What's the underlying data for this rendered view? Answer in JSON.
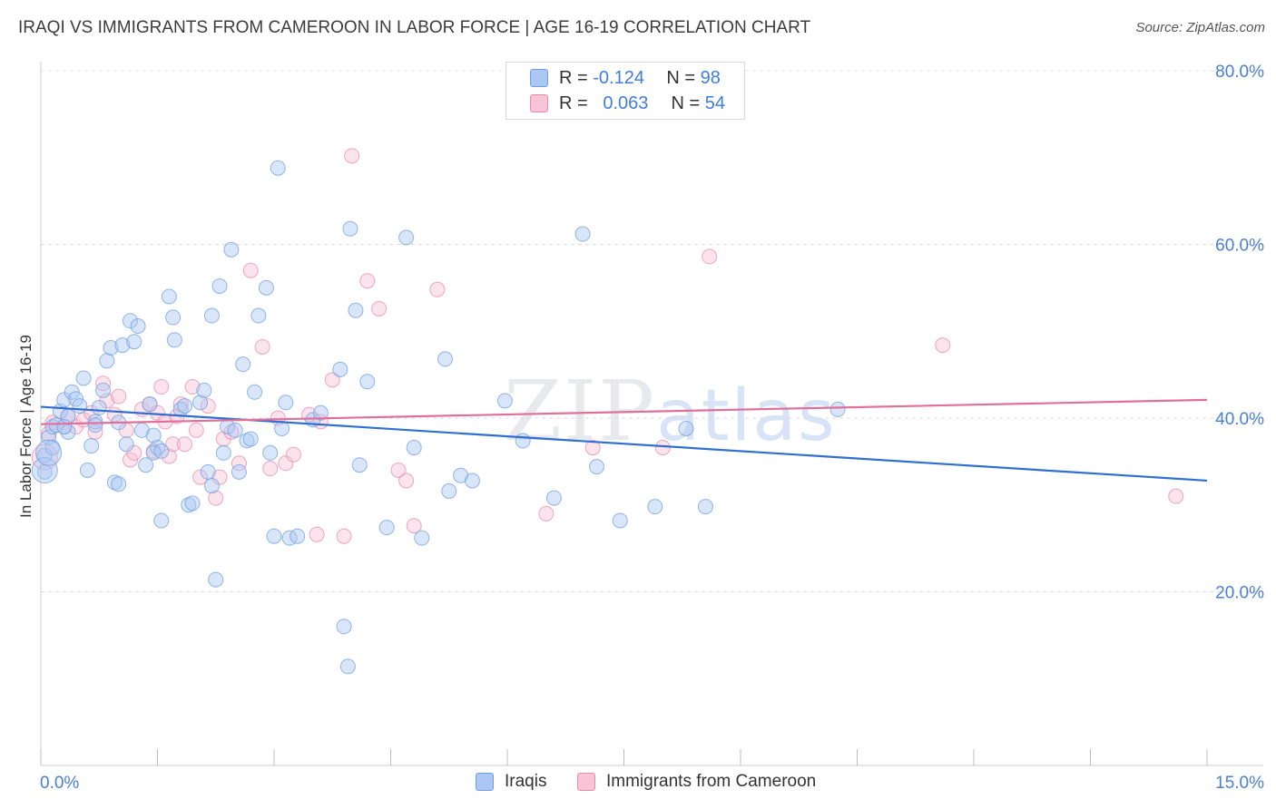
{
  "title": "IRAQI VS IMMIGRANTS FROM CAMEROON IN LABOR FORCE | AGE 16-19 CORRELATION CHART",
  "source": "Source: ZipAtlas.com",
  "watermark": {
    "zip": "ZIP",
    "atlas": "atlas"
  },
  "legend": {
    "rows": [
      {
        "r_label": "R =",
        "r_value": "-0.124",
        "n_label": "N =",
        "n_value": "98"
      },
      {
        "r_label": "R =",
        "r_value": "0.063",
        "n_label": "N =",
        "n_value": "54"
      }
    ]
  },
  "colors": {
    "iraqi_fill": "#aac8f3",
    "iraqi_stroke": "#6f9fe0",
    "iraqi_line": "#2f6fd0",
    "cameroon_fill": "#f8c4d6",
    "cameroon_stroke": "#e98aab",
    "cameroon_line": "#e0709a",
    "tick_text": "#4a7fd4"
  },
  "chart_data": {
    "type": "scatter",
    "title": "IRAQI VS IMMIGRANTS FROM CAMEROON IN LABOR FORCE | AGE 16-19 CORRELATION CHART",
    "xlabel": "",
    "ylabel": "In Labor Force | Age 16-19",
    "xlim": [
      0,
      15
    ],
    "ylim": [
      0,
      80
    ],
    "x_tick_labels": [
      "0.0%",
      "15.0%"
    ],
    "y_ticks": [
      20,
      40,
      60,
      80
    ],
    "y_tick_labels": [
      "20.0%",
      "40.0%",
      "60.0%",
      "80.0%"
    ],
    "grid": true,
    "legend_position": "top-center",
    "series": [
      {
        "name": "Iraqis",
        "r": -0.124,
        "n": 98,
        "trend": {
          "x": [
            0,
            15
          ],
          "y": [
            41.3,
            32.8
          ]
        },
        "points": [
          [
            0.05,
            35.7
          ],
          [
            0.05,
            33.8
          ],
          [
            0.1,
            37.8
          ],
          [
            0.15,
            39.0
          ],
          [
            0.2,
            39.2
          ],
          [
            0.25,
            40.8
          ],
          [
            0.3,
            42.1
          ],
          [
            0.35,
            38.4
          ],
          [
            0.4,
            43.0
          ],
          [
            0.45,
            42.2
          ],
          [
            0.5,
            41.4
          ],
          [
            0.55,
            44.6
          ],
          [
            0.6,
            34.0
          ],
          [
            0.65,
            36.8
          ],
          [
            0.7,
            39.6
          ],
          [
            0.75,
            41.2
          ],
          [
            0.8,
            43.2
          ],
          [
            0.85,
            46.6
          ],
          [
            0.9,
            48.1
          ],
          [
            0.95,
            32.6
          ],
          [
            1.0,
            32.4
          ],
          [
            1.05,
            48.4
          ],
          [
            1.1,
            37.0
          ],
          [
            1.15,
            51.2
          ],
          [
            1.2,
            48.8
          ],
          [
            1.25,
            50.6
          ],
          [
            1.3,
            38.6
          ],
          [
            1.35,
            34.6
          ],
          [
            1.4,
            41.6
          ],
          [
            1.45,
            38.0
          ],
          [
            1.5,
            36.6
          ],
          [
            1.55,
            28.2
          ],
          [
            1.45,
            36.0
          ],
          [
            1.55,
            36.2
          ],
          [
            1.65,
            54.0
          ],
          [
            1.7,
            51.6
          ],
          [
            1.72,
            49.0
          ],
          [
            1.8,
            41.0
          ],
          [
            1.85,
            41.4
          ],
          [
            1.9,
            30.0
          ],
          [
            1.95,
            30.2
          ],
          [
            2.05,
            41.8
          ],
          [
            2.1,
            43.2
          ],
          [
            2.15,
            33.8
          ],
          [
            2.2,
            51.8
          ],
          [
            2.25,
            21.4
          ],
          [
            2.3,
            55.2
          ],
          [
            2.35,
            36.0
          ],
          [
            2.4,
            39.0
          ],
          [
            2.45,
            59.4
          ],
          [
            2.5,
            38.6
          ],
          [
            2.55,
            33.8
          ],
          [
            2.6,
            46.2
          ],
          [
            2.65,
            37.4
          ],
          [
            2.7,
            37.6
          ],
          [
            2.75,
            43.0
          ],
          [
            2.8,
            51.8
          ],
          [
            2.9,
            55.0
          ],
          [
            2.95,
            36.0
          ],
          [
            3.0,
            26.4
          ],
          [
            3.05,
            68.8
          ],
          [
            3.1,
            38.8
          ],
          [
            3.15,
            41.8
          ],
          [
            3.2,
            26.2
          ],
          [
            3.3,
            26.4
          ],
          [
            3.5,
            39.8
          ],
          [
            3.6,
            40.6
          ],
          [
            3.85,
            45.6
          ],
          [
            3.9,
            16.0
          ],
          [
            3.95,
            11.4
          ],
          [
            3.98,
            61.8
          ],
          [
            4.05,
            52.4
          ],
          [
            4.1,
            34.6
          ],
          [
            4.2,
            44.2
          ],
          [
            4.45,
            27.4
          ],
          [
            4.7,
            60.8
          ],
          [
            4.9,
            26.2
          ],
          [
            4.8,
            36.6
          ],
          [
            5.2,
            46.8
          ],
          [
            5.25,
            31.6
          ],
          [
            5.4,
            33.4
          ],
          [
            5.55,
            32.8
          ],
          [
            5.97,
            42.0
          ],
          [
            6.2,
            37.4
          ],
          [
            6.6,
            30.8
          ],
          [
            6.97,
            61.2
          ],
          [
            7.15,
            34.4
          ],
          [
            7.45,
            28.2
          ],
          [
            7.9,
            29.8
          ],
          [
            8.3,
            38.8
          ],
          [
            8.55,
            29.8
          ],
          [
            10.25,
            41.0
          ],
          [
            0.7,
            39.2
          ],
          [
            0.35,
            40.2
          ],
          [
            0.15,
            36.6
          ],
          [
            0.3,
            39.0
          ],
          [
            1.0,
            39.5
          ],
          [
            2.2,
            32.2
          ]
        ],
        "big_points": [
          [
            0.05,
            34.0
          ],
          [
            0.1,
            36.0
          ]
        ]
      },
      {
        "name": "Immigrants from Cameroon",
        "r": 0.063,
        "n": 54,
        "trend": {
          "x": [
            0,
            15
          ],
          "y": [
            39.3,
            42.1
          ]
        },
        "points": [
          [
            0.1,
            38.2
          ],
          [
            0.15,
            39.5
          ],
          [
            0.3,
            39.0
          ],
          [
            0.35,
            40.2
          ],
          [
            0.45,
            39.0
          ],
          [
            0.55,
            39.8
          ],
          [
            0.65,
            40.6
          ],
          [
            0.7,
            38.4
          ],
          [
            0.8,
            44.0
          ],
          [
            0.85,
            42.0
          ],
          [
            0.95,
            40.4
          ],
          [
            1.0,
            42.5
          ],
          [
            1.1,
            38.6
          ],
          [
            1.15,
            35.2
          ],
          [
            1.2,
            36.0
          ],
          [
            1.3,
            41.0
          ],
          [
            1.4,
            41.6
          ],
          [
            1.45,
            36.2
          ],
          [
            1.5,
            40.6
          ],
          [
            1.55,
            43.6
          ],
          [
            1.6,
            39.6
          ],
          [
            1.65,
            35.6
          ],
          [
            1.7,
            37.0
          ],
          [
            1.75,
            40.2
          ],
          [
            1.8,
            41.6
          ],
          [
            1.85,
            37.0
          ],
          [
            1.95,
            43.6
          ],
          [
            2.0,
            38.6
          ],
          [
            2.05,
            33.2
          ],
          [
            2.15,
            41.4
          ],
          [
            2.25,
            30.8
          ],
          [
            2.3,
            33.2
          ],
          [
            2.35,
            37.6
          ],
          [
            2.45,
            38.4
          ],
          [
            2.55,
            34.8
          ],
          [
            2.7,
            57.0
          ],
          [
            2.85,
            48.2
          ],
          [
            2.95,
            34.2
          ],
          [
            3.05,
            40.0
          ],
          [
            3.15,
            34.8
          ],
          [
            3.25,
            35.8
          ],
          [
            3.45,
            40.4
          ],
          [
            3.55,
            26.6
          ],
          [
            3.6,
            39.6
          ],
          [
            3.75,
            44.4
          ],
          [
            3.9,
            26.4
          ],
          [
            4.0,
            70.2
          ],
          [
            4.2,
            55.8
          ],
          [
            4.35,
            52.6
          ],
          [
            4.6,
            34.0
          ],
          [
            4.7,
            32.8
          ],
          [
            4.8,
            27.6
          ],
          [
            5.1,
            54.8
          ],
          [
            7.1,
            36.6
          ]
        ],
        "extra_points": [
          [
            6.5,
            29.0
          ],
          [
            8.0,
            36.6
          ],
          [
            8.6,
            58.6
          ],
          [
            11.6,
            48.4
          ],
          [
            14.6,
            31.0
          ]
        ],
        "big_points": [
          [
            0.05,
            35.5
          ]
        ]
      }
    ]
  },
  "bottom_legend": {
    "items": [
      {
        "label": "Iraqis"
      },
      {
        "label": "Immigrants from Cameroon"
      }
    ]
  }
}
